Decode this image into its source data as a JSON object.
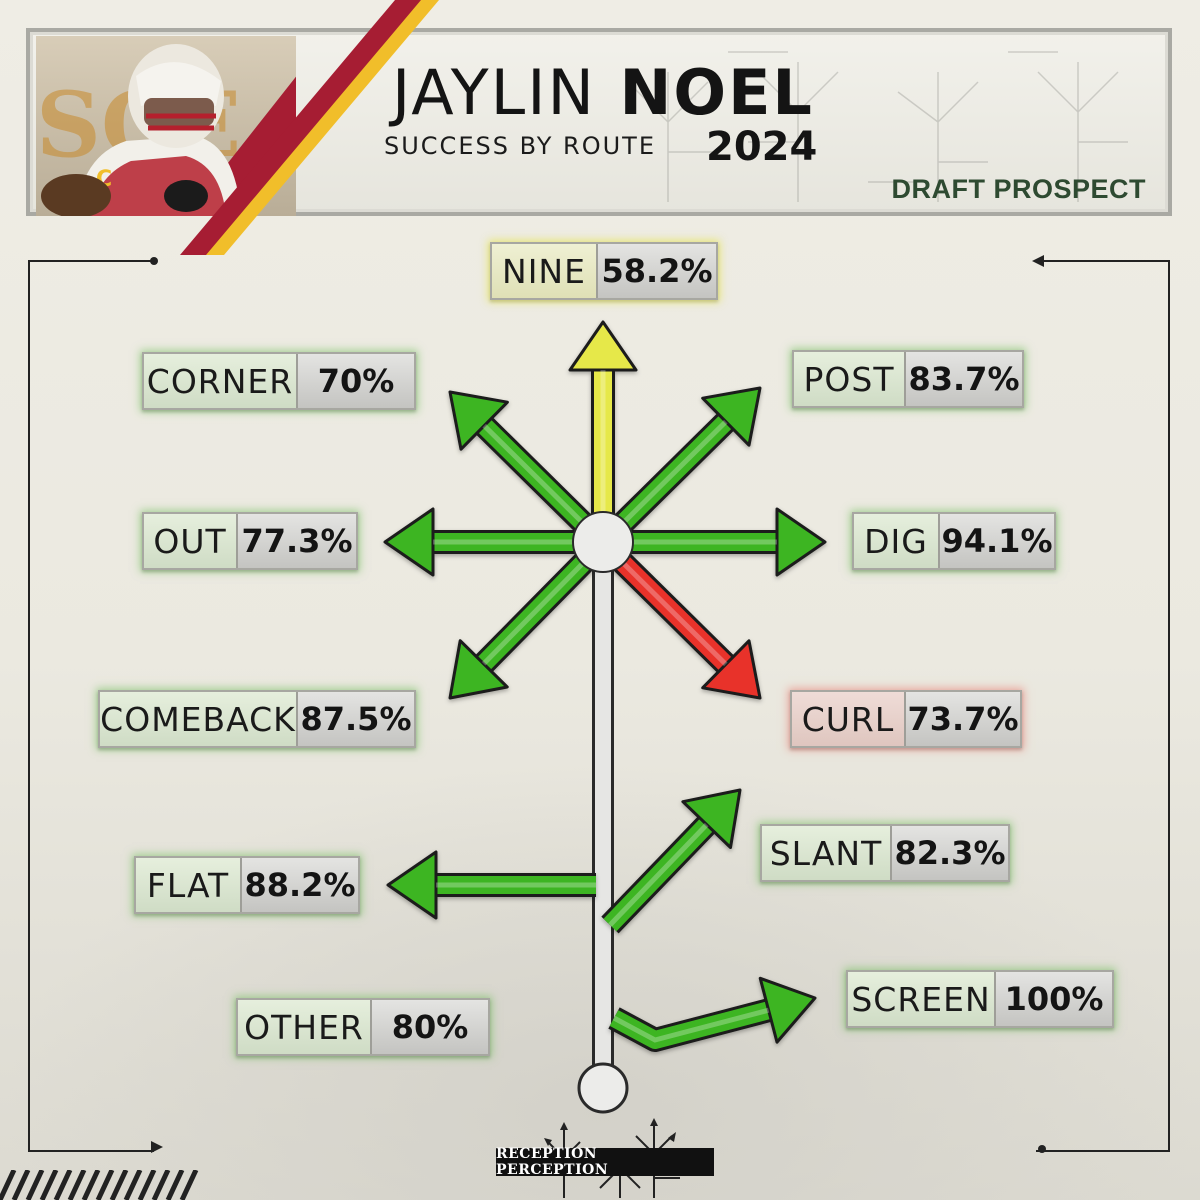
{
  "header": {
    "first_name": "JAYLIN",
    "last_name": "NOEL",
    "subtitle": "SUCCESS BY ROUTE",
    "year": "2024",
    "tag": "DRAFT PROSPECT"
  },
  "routes": {
    "nine": {
      "name": "NINE",
      "value": "58.2%",
      "color": "#e6e84a"
    },
    "corner": {
      "name": "CORNER",
      "value": "70%",
      "color": "#3cb521"
    },
    "post": {
      "name": "POST",
      "value": "83.7%",
      "color": "#3cb521"
    },
    "out": {
      "name": "OUT",
      "value": "77.3%",
      "color": "#3cb521"
    },
    "dig": {
      "name": "DIG",
      "value": "94.1%",
      "color": "#3cb521"
    },
    "comeback": {
      "name": "COMEBACK",
      "value": "87.5%",
      "color": "#3cb521"
    },
    "curl": {
      "name": "CURL",
      "value": "73.7%",
      "color": "#e8302c"
    },
    "slant": {
      "name": "SLANT",
      "value": "82.3%",
      "color": "#3cb521"
    },
    "flat": {
      "name": "FLAT",
      "value": "88.2%",
      "color": "#3cb521"
    },
    "screen": {
      "name": "SCREEN",
      "value": "100%",
      "color": "#3cb521"
    },
    "other": {
      "name": "OTHER",
      "value": "80%",
      "color": "#3cb521"
    }
  },
  "logo": {
    "text": "RECEPTION PERCEPTION"
  }
}
